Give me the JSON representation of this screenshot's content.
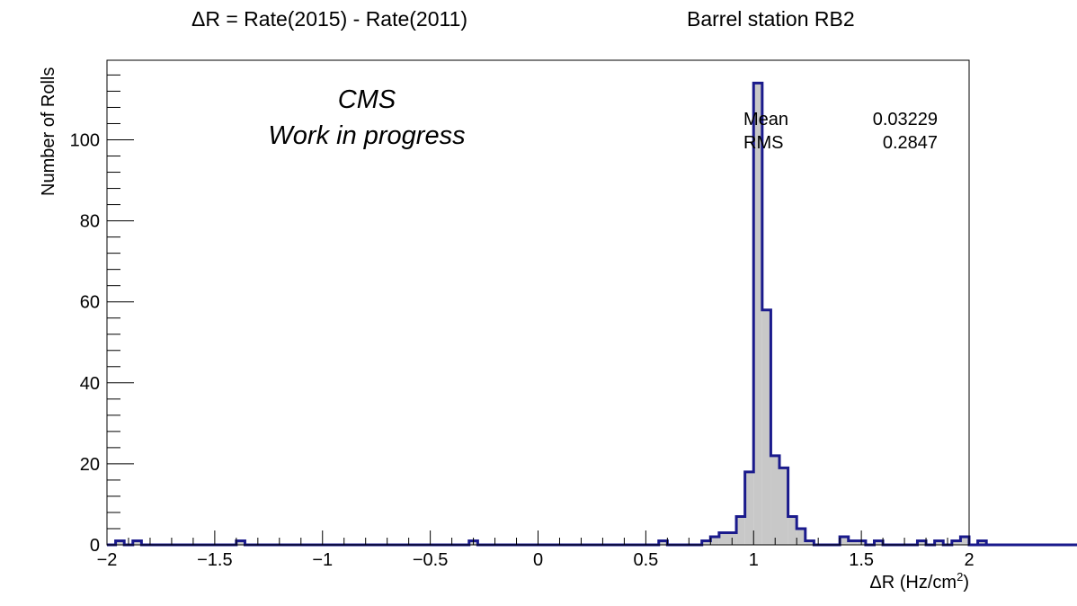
{
  "titles": {
    "main": "ΔR = Rate(2015) - Rate(2011)",
    "station": "Barrel station RB2"
  },
  "annotation": {
    "line1": "CMS",
    "line2": "Work in progress"
  },
  "stats": {
    "mean_label": "Mean",
    "mean_value": "0.03229",
    "rms_label": "RMS",
    "rms_value": "0.2847"
  },
  "colors": {
    "hist_line": "#1a1a8c",
    "hist_fill": "#c8c8c8",
    "axis": "#000000"
  },
  "chart_data": {
    "type": "bar",
    "histogram": true,
    "xlabel": "ΔR (Hz/cm",
    "xlabel_superscript": "2",
    "xlabel_suffix": ")",
    "ylabel": "Number of Rolls",
    "xlim": [
      -2,
      2
    ],
    "ylim": [
      0,
      120
    ],
    "x_major_ticks": [
      -2,
      -1.5,
      -1,
      -0.5,
      0,
      0.5,
      1,
      1.5,
      2
    ],
    "x_tick_labels": [
      "−2",
      "−1.5",
      "−1",
      "−0.5",
      "0",
      "0.5",
      "1",
      "1.5",
      "2"
    ],
    "y_major_ticks": [
      0,
      20,
      40,
      60,
      80,
      100
    ],
    "y_tick_labels": [
      "0",
      "20",
      "40",
      "60",
      "80",
      "100"
    ],
    "bin_width": 0.04,
    "bin_edges_start": -2,
    "values": [
      0,
      1,
      0,
      1,
      0,
      0,
      0,
      0,
      0,
      0,
      0,
      0,
      0,
      0,
      0,
      1,
      0,
      0,
      0,
      0,
      0,
      0,
      0,
      0,
      0,
      0,
      0,
      0,
      0,
      0,
      0,
      0,
      0,
      0,
      0,
      0,
      0,
      0,
      0,
      0,
      0,
      0,
      1,
      0,
      0,
      0,
      0,
      0,
      0,
      0,
      0,
      0,
      0,
      0,
      0,
      0,
      0,
      0,
      0,
      0,
      0,
      0,
      0,
      0,
      1,
      0,
      0,
      0,
      0,
      1,
      2,
      3,
      3,
      7,
      18,
      114,
      58,
      22,
      19,
      7,
      4,
      1,
      0,
      0,
      0,
      2,
      1,
      1,
      0,
      1,
      0,
      0,
      0,
      0,
      1,
      0,
      1,
      0,
      1,
      2,
      0,
      1,
      0,
      0,
      0,
      0,
      0,
      0,
      0,
      0,
      0,
      0,
      0,
      0,
      0,
      0,
      0,
      0,
      0,
      0,
      0,
      0,
      0,
      0,
      0,
      0,
      0,
      0,
      0,
      0,
      0,
      0,
      0,
      0,
      0,
      0,
      0,
      0,
      0,
      0,
      0,
      0,
      0,
      0,
      0,
      0,
      0,
      0,
      0,
      0
    ],
    "grid": false,
    "legend": "none"
  }
}
